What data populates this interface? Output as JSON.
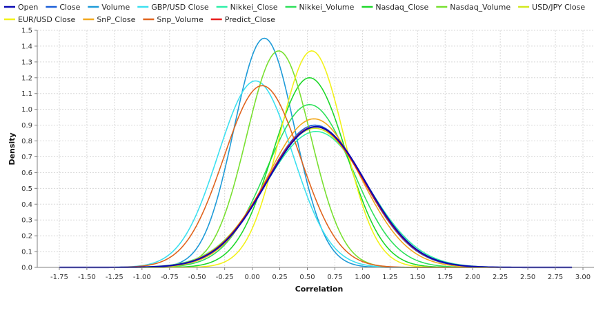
{
  "chart_data": {
    "type": "line",
    "title": "",
    "xlabel": "Correlation",
    "ylabel": "Density",
    "xlim": [
      -1.95,
      3.1
    ],
    "ylim": [
      0,
      1.5
    ],
    "xticks": [
      -1.75,
      -1.5,
      -1.25,
      -1.0,
      -0.75,
      -0.5,
      -0.25,
      0.0,
      0.25,
      0.5,
      0.75,
      1.0,
      1.25,
      1.5,
      1.75,
      2.0,
      2.25,
      2.5,
      2.75,
      3.0
    ],
    "xtick_labels": [
      "-1.75",
      "-1.50",
      "-1.25",
      "-1.00",
      "-0.75",
      "-0.50",
      "-0.25",
      "0.00",
      "0.25",
      "0.50",
      "0.75",
      "1.00",
      "1.25",
      "1.50",
      "1.75",
      "2.00",
      "2.25",
      "2.50",
      "2.75",
      "3.00"
    ],
    "yticks": [
      0.0,
      0.1,
      0.2,
      0.3,
      0.4,
      0.5,
      0.6,
      0.7,
      0.8,
      0.9,
      1.0,
      1.1,
      1.2,
      1.3,
      1.4,
      1.5
    ],
    "ytick_labels": [
      "0.0",
      "0.1",
      "0.2",
      "0.3",
      "0.4",
      "0.5",
      "0.6",
      "0.7",
      "0.8",
      "0.9",
      "1.0",
      "1.1",
      "1.2",
      "1.3",
      "1.4",
      "1.5"
    ],
    "grid": true,
    "legend_position": "top",
    "x_domain": [
      -1.75,
      2.9
    ],
    "series": [
      {
        "name": "Open",
        "color": "#0a0ab4",
        "mean": 0.58,
        "peak": 0.89,
        "width": 2.2
      },
      {
        "name": "Close",
        "color": "#1a5fd8",
        "mean": 0.57,
        "peak": 0.9,
        "width": 1.6
      },
      {
        "name": "Volume",
        "color": "#1e9bd8",
        "mean": 0.11,
        "peak": 1.45,
        "width": 1.6
      },
      {
        "name": "GBP/USD Close",
        "color": "#3ce0f0",
        "mean": 0.03,
        "peak": 1.18,
        "width": 1.6
      },
      {
        "name": "Nikkei_Close",
        "color": "#2ef0a8",
        "mean": 0.58,
        "peak": 0.86,
        "width": 1.6
      },
      {
        "name": "Nikkei_Volume",
        "color": "#2ee05a",
        "mean": 0.52,
        "peak": 1.03,
        "width": 1.6
      },
      {
        "name": "Nasdaq_Close",
        "color": "#1ed82a",
        "mean": 0.52,
        "peak": 1.2,
        "width": 1.6
      },
      {
        "name": "Nasdaq_Volume",
        "color": "#78e030",
        "mean": 0.24,
        "peak": 1.37,
        "width": 1.6
      },
      {
        "name": "USD/JPY Close",
        "color": "#d2e81e",
        "mean": 0.57,
        "peak": 0.88,
        "width": 1.6
      },
      {
        "name": "EUR/USD Close",
        "color": "#f2f21a",
        "mean": 0.54,
        "peak": 1.37,
        "width": 1.6
      },
      {
        "name": "SnP_Close",
        "color": "#f2a81e",
        "mean": 0.56,
        "peak": 0.94,
        "width": 1.6
      },
      {
        "name": "Snp_Volume",
        "color": "#e0641e",
        "mean": 0.09,
        "peak": 1.15,
        "width": 1.6
      },
      {
        "name": "Predict_Close",
        "color": "#e81e1e",
        "mean": 0.57,
        "peak": 0.89,
        "width": 1.6
      }
    ]
  }
}
